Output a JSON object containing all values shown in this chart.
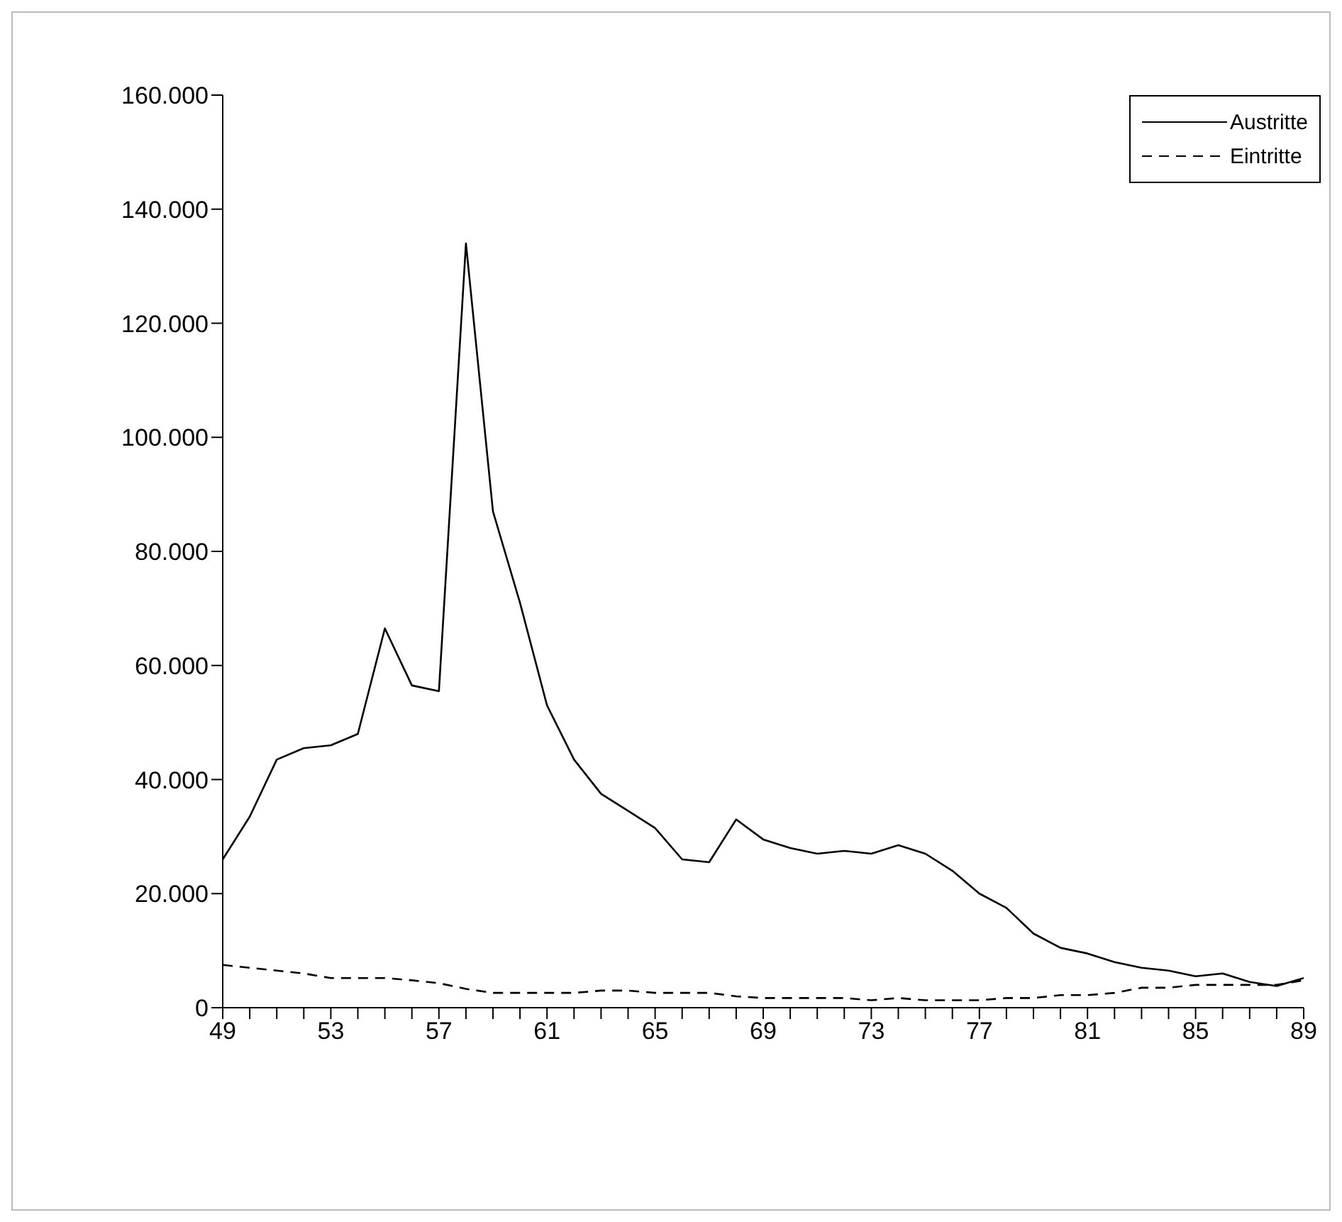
{
  "chart_data": {
    "type": "line",
    "x": [
      49,
      50,
      51,
      52,
      53,
      54,
      55,
      56,
      57,
      58,
      59,
      60,
      61,
      62,
      63,
      64,
      65,
      66,
      67,
      68,
      69,
      70,
      71,
      72,
      73,
      74,
      75,
      76,
      77,
      78,
      79,
      80,
      81,
      82,
      83,
      84,
      85,
      86,
      87,
      88,
      89
    ],
    "series": [
      {
        "name": "Austritte",
        "color": "#000000",
        "line_style": "solid",
        "values": [
          26000,
          33500,
          43500,
          45500,
          46000,
          48000,
          66500,
          56500,
          55500,
          134000,
          87000,
          71000,
          53000,
          43500,
          37500,
          34500,
          31500,
          26000,
          25500,
          33000,
          29500,
          28000,
          27000,
          27500,
          27000,
          28500,
          27000,
          24000,
          20000,
          17500,
          13000,
          10500,
          9500,
          8000,
          7000,
          6500,
          5500,
          6000,
          4500,
          3800,
          5200
        ]
      },
      {
        "name": "Eintritte",
        "color": "#000000",
        "line_style": "dashed",
        "values": [
          7500,
          7000,
          6500,
          6000,
          5200,
          5200,
          5200,
          4800,
          4300,
          3300,
          2600,
          2600,
          2600,
          2600,
          3000,
          3000,
          2600,
          2600,
          2600,
          2000,
          1700,
          1700,
          1700,
          1700,
          1300,
          1700,
          1300,
          1300,
          1300,
          1700,
          1700,
          2200,
          2200,
          2600,
          3500,
          3500,
          4000,
          4000,
          4000,
          4000,
          4800
        ]
      }
    ],
    "xlim": [
      49,
      89
    ],
    "xticks": [
      49,
      {
        "value": 50,
        "label": null
      },
      {
        "value": 51,
        "label": null
      },
      {
        "value": 52,
        "label": null
      },
      53,
      {
        "value": 54,
        "label": null
      },
      {
        "value": 55,
        "label": null
      },
      {
        "value": 56,
        "label": null
      },
      57,
      {
        "value": 58,
        "label": null
      },
      {
        "value": 59,
        "label": null
      },
      {
        "value": 60,
        "label": null
      },
      61,
      {
        "value": 62,
        "label": null
      },
      {
        "value": 63,
        "label": null
      },
      {
        "value": 64,
        "label": null
      },
      65,
      {
        "value": 66,
        "label": null
      },
      {
        "value": 67,
        "label": null
      },
      {
        "value": 68,
        "label": null
      },
      69,
      {
        "value": 70,
        "label": null
      },
      {
        "value": 71,
        "label": null
      },
      {
        "value": 72,
        "label": null
      },
      73,
      {
        "value": 74,
        "label": null
      },
      {
        "value": 75,
        "label": null
      },
      {
        "value": 76,
        "label": null
      },
      77,
      {
        "value": 78,
        "label": null
      },
      {
        "value": 79,
        "label": null
      },
      {
        "value": 80,
        "label": null
      },
      81,
      {
        "value": 82,
        "label": null
      },
      {
        "value": 83,
        "label": null
      },
      {
        "value": 84,
        "label": null
      },
      85,
      {
        "value": 86,
        "label": null
      },
      {
        "value": 87,
        "label": null
      },
      {
        "value": 88,
        "label": null
      },
      89
    ],
    "ylim": [
      0,
      160000
    ],
    "yticks": [
      0,
      {
        "value": 20000,
        "label": "20.000"
      },
      {
        "value": 40000,
        "label": "40.000"
      },
      {
        "value": 60000,
        "label": "60.000"
      },
      {
        "value": 80000,
        "label": "80.000"
      },
      {
        "value": 100000,
        "label": "100.000"
      },
      {
        "value": 120000,
        "label": "120.000"
      },
      {
        "value": 140000,
        "label": "140.000"
      },
      {
        "value": 160000,
        "label": "160.000"
      }
    ],
    "grid": false,
    "legend": "top right",
    "marker": "none"
  }
}
